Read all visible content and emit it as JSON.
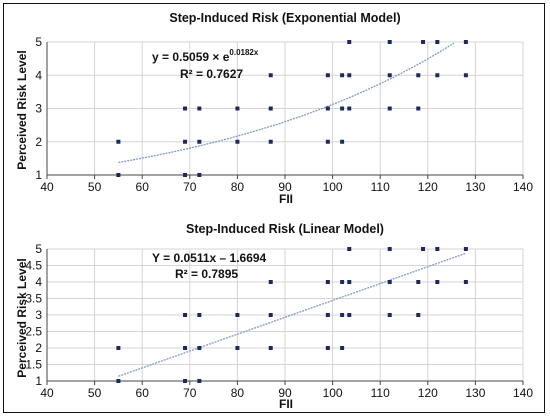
{
  "chart_data": [
    {
      "type": "scatter",
      "title": "Step-Induced Risk (Exponential Model)",
      "xlabel": "FII",
      "ylabel": "Perceived Risk Level",
      "xlim": [
        40,
        140
      ],
      "ylim": [
        1,
        5
      ],
      "xticks": [
        "40",
        "50",
        "60",
        "70",
        "80",
        "90",
        "100",
        "110",
        "120",
        "130",
        "140"
      ],
      "yticks": [
        "1",
        "2",
        "3",
        "4",
        "5"
      ],
      "grid": true,
      "points": [
        {
          "x": 55,
          "y": 1
        },
        {
          "x": 55,
          "y": 2
        },
        {
          "x": 69,
          "y": 1
        },
        {
          "x": 69,
          "y": 2
        },
        {
          "x": 69,
          "y": 3
        },
        {
          "x": 72,
          "y": 1
        },
        {
          "x": 72,
          "y": 2
        },
        {
          "x": 72,
          "y": 3
        },
        {
          "x": 80,
          "y": 2
        },
        {
          "x": 80,
          "y": 3
        },
        {
          "x": 87,
          "y": 2
        },
        {
          "x": 87,
          "y": 3
        },
        {
          "x": 87,
          "y": 4
        },
        {
          "x": 99,
          "y": 2
        },
        {
          "x": 99,
          "y": 3
        },
        {
          "x": 99,
          "y": 4
        },
        {
          "x": 102,
          "y": 2
        },
        {
          "x": 102,
          "y": 3
        },
        {
          "x": 102,
          "y": 4
        },
        {
          "x": 103.5,
          "y": 3
        },
        {
          "x": 103.5,
          "y": 4
        },
        {
          "x": 103.5,
          "y": 5
        },
        {
          "x": 112,
          "y": 3
        },
        {
          "x": 112,
          "y": 4
        },
        {
          "x": 112,
          "y": 5
        },
        {
          "x": 118,
          "y": 3
        },
        {
          "x": 118,
          "y": 4
        },
        {
          "x": 119,
          "y": 5
        },
        {
          "x": 122,
          "y": 4
        },
        {
          "x": 122,
          "y": 5
        },
        {
          "x": 128,
          "y": 4
        },
        {
          "x": 128,
          "y": 5
        }
      ],
      "trendline": {
        "model": "exponential",
        "a": 0.5059,
        "b": 0.0182
      },
      "equation": {
        "main": "y = 0.5059 × e",
        "exponent": "0.0182x",
        "r2": "R² = 0.7627"
      },
      "colors": {
        "points": "#1a2a5c",
        "trend": "#7f9bc6",
        "grid": "#d4d4d4"
      }
    },
    {
      "type": "scatter",
      "title": "Step-Induced Risk (Linear Model)",
      "xlabel": "FII",
      "ylabel": "Perceived Risk Level",
      "xlim": [
        40,
        140
      ],
      "ylim": [
        1,
        5
      ],
      "xticks": [
        "40",
        "50",
        "60",
        "70",
        "80",
        "90",
        "100",
        "110",
        "120",
        "130",
        "140"
      ],
      "yticks": [
        "1",
        "1.5",
        "2",
        "2.5",
        "3",
        "3.5",
        "4",
        "4.5",
        "5"
      ],
      "grid": true,
      "points": [
        {
          "x": 55,
          "y": 1
        },
        {
          "x": 55,
          "y": 2
        },
        {
          "x": 69,
          "y": 1
        },
        {
          "x": 69,
          "y": 2
        },
        {
          "x": 69,
          "y": 3
        },
        {
          "x": 72,
          "y": 1
        },
        {
          "x": 72,
          "y": 2
        },
        {
          "x": 72,
          "y": 3
        },
        {
          "x": 80,
          "y": 2
        },
        {
          "x": 80,
          "y": 3
        },
        {
          "x": 87,
          "y": 2
        },
        {
          "x": 87,
          "y": 3
        },
        {
          "x": 87,
          "y": 4
        },
        {
          "x": 99,
          "y": 2
        },
        {
          "x": 99,
          "y": 3
        },
        {
          "x": 99,
          "y": 4
        },
        {
          "x": 102,
          "y": 2
        },
        {
          "x": 102,
          "y": 3
        },
        {
          "x": 102,
          "y": 4
        },
        {
          "x": 103.5,
          "y": 3
        },
        {
          "x": 103.5,
          "y": 4
        },
        {
          "x": 103.5,
          "y": 5
        },
        {
          "x": 112,
          "y": 3
        },
        {
          "x": 112,
          "y": 4
        },
        {
          "x": 112,
          "y": 5
        },
        {
          "x": 118,
          "y": 3
        },
        {
          "x": 118,
          "y": 4
        },
        {
          "x": 119,
          "y": 5
        },
        {
          "x": 122,
          "y": 4
        },
        {
          "x": 122,
          "y": 5
        },
        {
          "x": 128,
          "y": 4
        },
        {
          "x": 128,
          "y": 5
        }
      ],
      "trendline": {
        "model": "linear",
        "slope": 0.0511,
        "intercept": -1.6694
      },
      "equation": {
        "main": "Y = 0.0511x – 1.6694",
        "exponent": "",
        "r2": "R² = 0.7895"
      },
      "colors": {
        "points": "#1a2a5c",
        "trend": "#7f9bc6",
        "grid": "#d4d4d4"
      }
    }
  ]
}
